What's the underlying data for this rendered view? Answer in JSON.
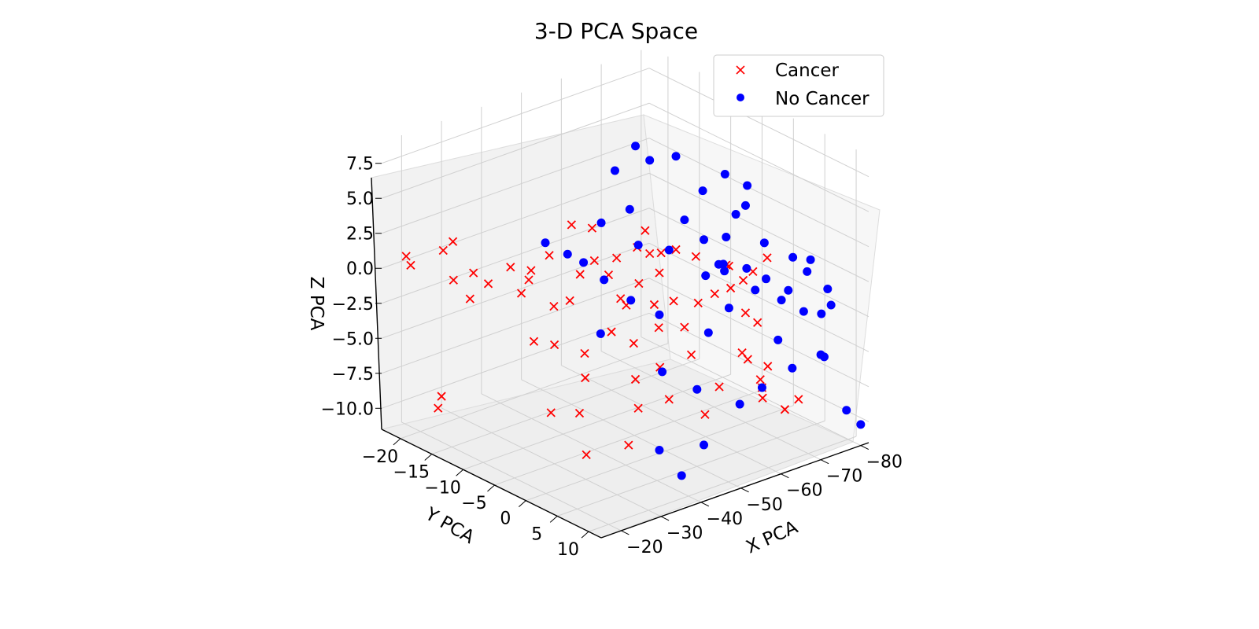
{
  "chart_data": {
    "type": "scatter",
    "title": "3-D PCA Space",
    "xlabel": "X PCA",
    "ylabel": "Y PCA",
    "zlabel": "Z PCA",
    "xticks": [
      "−20",
      "−30",
      "−40",
      "−50",
      "−60",
      "−70",
      "−80"
    ],
    "yticks": [
      "−20",
      "−15",
      "−10",
      "−5",
      "0",
      "5",
      "10"
    ],
    "zticks": [
      "−10.0",
      "−7.5",
      "−5.0",
      "−2.5",
      "0.0",
      "2.5",
      "5.0",
      "7.5"
    ],
    "xlim": [
      -15,
      -82
    ],
    "ylim": [
      -23,
      12
    ],
    "zlim": [
      -11.5,
      9
    ],
    "grid": true,
    "legend_position": "top-right",
    "colors": {
      "Cancer": "#ff0000",
      "No Cancer": "#0000ff"
    },
    "series": [
      {
        "name": "Cancer",
        "marker": "x",
        "points": [
          [
            -18,
            -21,
            1
          ],
          [
            -16,
            -19,
            1
          ],
          [
            -22,
            -16,
            0
          ],
          [
            -21,
            -17,
            2
          ],
          [
            -23,
            -14,
            -1
          ],
          [
            -26,
            -13,
            0
          ],
          [
            -15,
            -14,
            -8
          ],
          [
            -19,
            -16,
            -8
          ],
          [
            -25,
            -18,
            2
          ],
          [
            -27,
            -16,
            0
          ],
          [
            -30,
            -12,
            1
          ],
          [
            -32,
            -10,
            1
          ],
          [
            -33,
            -11,
            0
          ],
          [
            -35,
            -9,
            2
          ],
          [
            -28,
            -9,
            0
          ],
          [
            -33,
            -7,
            -1
          ],
          [
            -28,
            -7,
            -3
          ],
          [
            -30,
            -5,
            -3
          ],
          [
            -37,
            -7,
            -1
          ],
          [
            -40,
            -5,
            2
          ],
          [
            -38,
            -6,
            1
          ],
          [
            -42,
            -4,
            1
          ],
          [
            -44,
            -4,
            2
          ],
          [
            -46,
            -2,
            3
          ],
          [
            -41,
            -6,
            4
          ],
          [
            -39,
            -8,
            4
          ],
          [
            -45,
            -4,
            -1
          ],
          [
            -48,
            -3,
            0
          ],
          [
            -50,
            -1,
            1
          ],
          [
            -52,
            0,
            -1
          ],
          [
            -36,
            -4,
            -4
          ],
          [
            -33,
            -2,
            -5
          ],
          [
            -42,
            0,
            -3
          ],
          [
            -47,
            1,
            -5
          ],
          [
            -50,
            3,
            -2
          ],
          [
            -55,
            2,
            -1
          ],
          [
            -56,
            4,
            0
          ],
          [
            -58,
            5,
            2
          ],
          [
            -60,
            6,
            1
          ],
          [
            -62,
            7,
            -2
          ],
          [
            -58,
            8,
            -4
          ],
          [
            -60,
            9,
            -6
          ],
          [
            -54,
            6,
            -6
          ],
          [
            -52,
            5,
            -8
          ],
          [
            -58,
            10,
            -5
          ],
          [
            -66,
            11,
            -7
          ],
          [
            -63,
            8,
            -5
          ],
          [
            -56,
            1,
            2
          ],
          [
            -52,
            -2,
            2
          ],
          [
            -48,
            -5,
            -2
          ],
          [
            -44,
            -1,
            -6
          ],
          [
            -40,
            2,
            -7
          ],
          [
            -36,
            3,
            -9
          ],
          [
            -30,
            -1,
            -7
          ],
          [
            -27,
            2,
            -9
          ],
          [
            -26,
            -3,
            -7
          ],
          [
            -38,
            -1,
            -2
          ],
          [
            -46,
            0,
            3
          ],
          [
            -51,
            1,
            3
          ],
          [
            -48,
            -2,
            4
          ],
          [
            -44,
            2,
            0
          ],
          [
            -42,
            4,
            -1
          ],
          [
            -60,
            4,
            0
          ],
          [
            -64,
            5,
            1
          ],
          [
            -62,
            2,
            1
          ],
          [
            -66,
            6,
            2
          ],
          [
            -59,
            7,
            -1
          ],
          [
            -55,
            9,
            -3
          ],
          [
            -57,
            11,
            -6
          ],
          [
            -61,
            12,
            -7
          ],
          [
            -47,
            6,
            -3
          ],
          [
            -43,
            5,
            -6
          ]
        ]
      },
      {
        "name": "No Cancer",
        "marker": "o",
        "points": [
          [
            -55,
            -8,
            8
          ],
          [
            -57,
            -7,
            7
          ],
          [
            -62,
            -6,
            7
          ],
          [
            -64,
            -3,
            5
          ],
          [
            -68,
            -2,
            6
          ],
          [
            -72,
            -1,
            5
          ],
          [
            -70,
            0,
            4
          ],
          [
            -66,
            1,
            4
          ],
          [
            -62,
            2,
            3
          ],
          [
            -58,
            1,
            3
          ],
          [
            -54,
            -2,
            2
          ],
          [
            -60,
            3,
            1
          ],
          [
            -64,
            4,
            1
          ],
          [
            -70,
            3,
            2
          ],
          [
            -74,
            5,
            1
          ],
          [
            -76,
            6,
            0
          ],
          [
            -78,
            8,
            -1
          ],
          [
            -72,
            8,
            -2
          ],
          [
            -68,
            7,
            -1
          ],
          [
            -63,
            6,
            0
          ],
          [
            -58,
            5,
            -1
          ],
          [
            -56,
            3,
            -3
          ],
          [
            -50,
            -1,
            -2
          ],
          [
            -46,
            -3,
            -1
          ],
          [
            -44,
            -6,
            0
          ],
          [
            -42,
            -8,
            1
          ],
          [
            -48,
            -9,
            3
          ],
          [
            -52,
            -7,
            4
          ],
          [
            -38,
            -8,
            2
          ],
          [
            -34,
            -9,
            3
          ],
          [
            -40,
            -4,
            -3
          ],
          [
            -46,
            2,
            -5
          ],
          [
            -50,
            5,
            -6
          ],
          [
            -56,
            8,
            -7
          ],
          [
            -60,
            9,
            -6
          ],
          [
            -66,
            10,
            -5
          ],
          [
            -70,
            12,
            -4
          ],
          [
            -78,
            11,
            -9
          ],
          [
            -80,
            12,
            -10
          ],
          [
            -74,
            10,
            -5
          ],
          [
            -64,
            9,
            -3
          ],
          [
            -60,
            0,
            0
          ],
          [
            -66,
            -1,
            0
          ],
          [
            -72,
            2,
            -1
          ],
          [
            -76,
            3,
            -2
          ],
          [
            -80,
            4,
            0
          ],
          [
            -82,
            6,
            -3
          ],
          [
            -78,
            7,
            -3
          ],
          [
            -53,
            -10,
            6
          ],
          [
            -61,
            -4,
            3
          ],
          [
            -57,
            4,
            2
          ],
          [
            -51,
            -5,
            2
          ],
          [
            -47,
            8,
            -9
          ],
          [
            -43,
            7,
            -11
          ],
          [
            -39,
            6,
            -9
          ]
        ]
      }
    ]
  }
}
